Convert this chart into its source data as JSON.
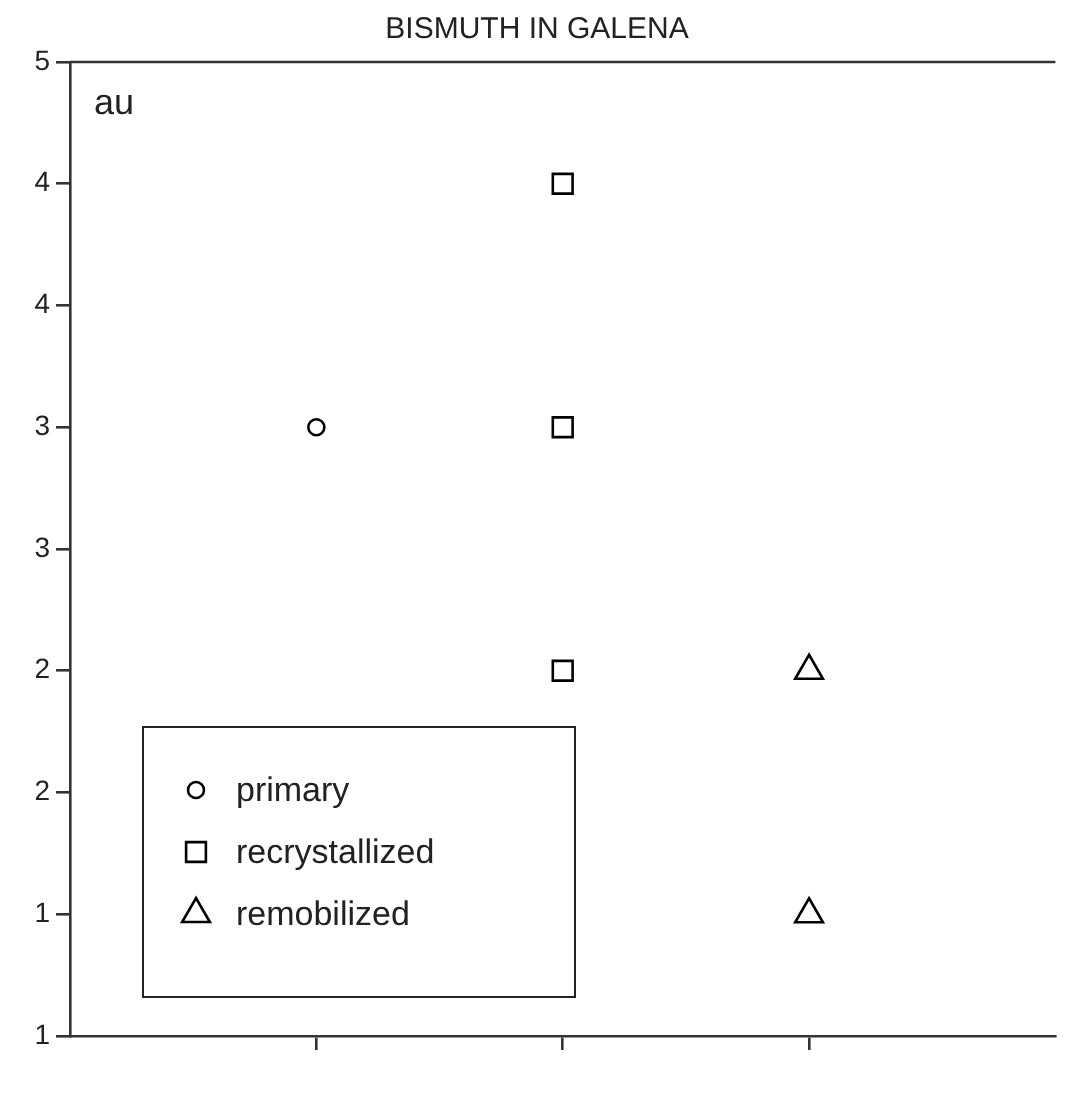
{
  "chart_data": {
    "type": "scatter",
    "title": "BISMUTH IN GALENA",
    "ylabel": "au",
    "categories": [
      null,
      null,
      null
    ],
    "ylim": [
      1,
      5
    ],
    "yticks": [
      {
        "value": 1,
        "label": "1"
      },
      {
        "value": 1.5,
        "label": "1"
      },
      {
        "value": 2,
        "label": "2"
      },
      {
        "value": 2.5,
        "label": "2"
      },
      {
        "value": 3,
        "label": "3"
      },
      {
        "value": 3.5,
        "label": "3"
      },
      {
        "value": 4,
        "label": "4"
      },
      {
        "value": 4.5,
        "label": "4"
      },
      {
        "value": 5,
        "label": "5"
      }
    ],
    "grid": false,
    "legend": "bottom left",
    "series": [
      {
        "name": "primary",
        "color": "#000000",
        "marker": "circle",
        "values": [
          3.5,
          null,
          null
        ]
      },
      {
        "name": "recrystallized",
        "color": "#000000",
        "marker": "square",
        "values": [
          null,
          4.5,
          null
        ]
      },
      {
        "color": "#000000",
        "marker": "square",
        "values": [
          null,
          3.5,
          null
        ]
      },
      {
        "color": "#000000",
        "marker": "square",
        "values": [
          null,
          2.5,
          null
        ]
      },
      {
        "name": "remobilized",
        "color": "#000000",
        "marker": "triangle",
        "values": [
          null,
          null,
          2.5
        ]
      },
      {
        "color": "#000000",
        "marker": "triangle",
        "values": [
          null,
          null,
          1.5
        ]
      }
    ]
  }
}
